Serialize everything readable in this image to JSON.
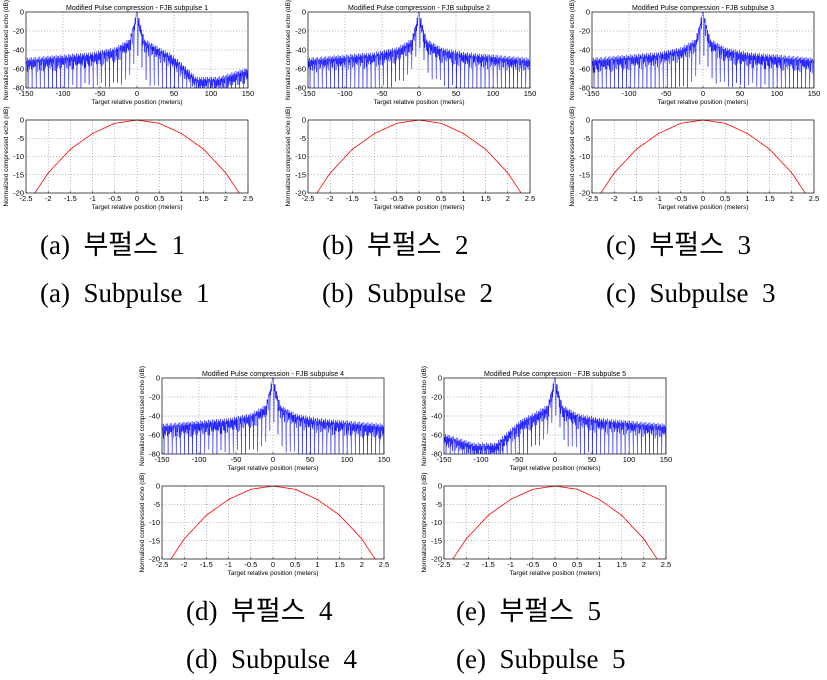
{
  "chart_data": [
    {
      "id": "a",
      "type": "line",
      "title": "Modified Pulse compression - FJB subpulse 1",
      "caption_ko": "(a)  부펄스  1",
      "caption_en": "(a)  Subpulse  1",
      "top": {
        "xlabel": "Target relative position (meters)",
        "ylabel": "Normalized compressed echo (dB)",
        "xlim": [
          -150,
          150
        ],
        "ylim": [
          -80,
          0
        ],
        "xticks": [
          -150,
          -100,
          -50,
          0,
          50,
          100,
          150
        ],
        "yticks": [
          0,
          -20,
          -40,
          -60,
          -80
        ],
        "grid": true,
        "color": "#0000ff",
        "series": [
          {
            "x": [
              -150,
              -120,
              -90,
              -60,
              -30,
              -10,
              0,
              10,
              30,
              45,
              60,
              80,
              110,
              150
            ],
            "y": [
              -50,
              -48,
              -46,
              -44,
              -39,
              -30,
              0,
              -30,
              -39,
              -45,
              -55,
              -70,
              -70,
              -60
            ]
          }
        ]
      },
      "bottom": {
        "xlabel": "Target relative position (meters)",
        "ylabel": "Normalized compressed echo (dB)",
        "xlim": [
          -2.5,
          2.5
        ],
        "ylim": [
          -20,
          0
        ],
        "xticks": [
          -2.5,
          -2,
          -1.5,
          -1,
          -0.5,
          0,
          0.5,
          1,
          1.5,
          2,
          2.5
        ],
        "yticks": [
          0,
          -5,
          -10,
          -15,
          -20
        ],
        "grid": true,
        "color": "#ff0000",
        "series": [
          {
            "x": [
              -2.3,
              -2,
              -1.5,
              -1,
              -0.5,
              0,
              0.5,
              1,
              1.5,
              2,
              2.3
            ],
            "y": [
              -20,
              -14.5,
              -8,
              -3.7,
              -0.9,
              0,
              -0.9,
              -3.7,
              -8,
              -14.5,
              -20
            ]
          }
        ]
      }
    },
    {
      "id": "b",
      "type": "line",
      "title": "Modified Pulse compression - FJB subpulse 2",
      "caption_ko": "(b)  부펄스  2",
      "caption_en": "(b)  Subpulse  2",
      "top": {
        "xlabel": "Target relative position (meters)",
        "ylabel": "Normalized compressed echo (dB)",
        "xlim": [
          -150,
          150
        ],
        "ylim": [
          -80,
          0
        ],
        "xticks": [
          -150,
          -100,
          -50,
          0,
          50,
          100,
          150
        ],
        "yticks": [
          0,
          -20,
          -40,
          -60,
          -80
        ],
        "grid": true,
        "color": "#0000ff",
        "series": [
          {
            "x": [
              -150,
              -120,
              -90,
              -60,
              -30,
              -10,
              0,
              10,
              30,
              60,
              90,
              120,
              150
            ],
            "y": [
              -50,
              -48,
              -46,
              -44,
              -39,
              -30,
              0,
              -30,
              -39,
              -44,
              -46,
              -48,
              -50
            ]
          }
        ]
      },
      "bottom": {
        "xlabel": "Target relative position (meters)",
        "ylabel": "Normalized compressed echo (dB)",
        "xlim": [
          -2.5,
          2.5
        ],
        "ylim": [
          -20,
          0
        ],
        "xticks": [
          -2.5,
          -2,
          -1.5,
          -1,
          -0.5,
          0,
          0.5,
          1,
          1.5,
          2,
          2.5
        ],
        "yticks": [
          0,
          -5,
          -10,
          -15,
          -20
        ],
        "grid": true,
        "color": "#ff0000",
        "series": [
          {
            "x": [
              -2.3,
              -2,
              -1.5,
              -1,
              -0.5,
              0,
              0.5,
              1,
              1.5,
              2,
              2.3
            ],
            "y": [
              -20,
              -14.5,
              -8,
              -3.7,
              -0.9,
              0,
              -0.9,
              -3.7,
              -8,
              -14.5,
              -20
            ]
          }
        ]
      }
    },
    {
      "id": "c",
      "type": "line",
      "title": "Modified Pulse compression - FJB subpulse 3",
      "caption_ko": "(c)  부펄스  3",
      "caption_en": "(c)  Subpulse  3",
      "top": {
        "xlabel": "Target relative position (meters)",
        "ylabel": "Normalized compressed echo (dB)",
        "xlim": [
          -150,
          150
        ],
        "ylim": [
          -80,
          0
        ],
        "xticks": [
          -150,
          -100,
          -50,
          0,
          50,
          100,
          150
        ],
        "yticks": [
          0,
          -20,
          -40,
          -60,
          -80
        ],
        "grid": true,
        "color": "#0000ff",
        "series": [
          {
            "x": [
              -150,
              -120,
              -90,
              -60,
              -30,
              -10,
              0,
              10,
              30,
              60,
              90,
              120,
              150
            ],
            "y": [
              -50,
              -48,
              -46,
              -44,
              -39,
              -30,
              0,
              -30,
              -39,
              -44,
              -46,
              -48,
              -50
            ]
          }
        ]
      },
      "bottom": {
        "xlabel": "Target relative position (meters)",
        "ylabel": "Normalized compressed echo (dB)",
        "xlim": [
          -2.5,
          2.5
        ],
        "ylim": [
          -20,
          0
        ],
        "xticks": [
          -2.5,
          -2,
          -1.5,
          -1,
          -0.5,
          0,
          0.5,
          1,
          1.5,
          2,
          2.5
        ],
        "yticks": [
          0,
          -5,
          -10,
          -15,
          -20
        ],
        "grid": true,
        "color": "#ff0000",
        "series": [
          {
            "x": [
              -2.3,
              -2,
              -1.5,
              -1,
              -0.5,
              0,
              0.5,
              1,
              1.5,
              2,
              2.3
            ],
            "y": [
              -20,
              -14.5,
              -8,
              -3.7,
              -0.9,
              0,
              -0.9,
              -3.7,
              -8,
              -14.5,
              -20
            ]
          }
        ]
      }
    },
    {
      "id": "d",
      "type": "line",
      "title": "Modified Pulse compression - FJB subpulse 4",
      "caption_ko": "(d)  부펄스  4",
      "caption_en": "(d)  Subpulse  4",
      "top": {
        "xlabel": "Target relative position (meters)",
        "ylabel": "Normalized compressed echo (dB)",
        "xlim": [
          -150,
          150
        ],
        "ylim": [
          -80,
          0
        ],
        "xticks": [
          -150,
          -100,
          -50,
          0,
          50,
          100,
          150
        ],
        "yticks": [
          0,
          -20,
          -40,
          -60,
          -80
        ],
        "grid": true,
        "color": "#0000ff",
        "series": [
          {
            "x": [
              -150,
              -120,
              -90,
              -60,
              -30,
              -10,
              0,
              10,
              30,
              60,
              90,
              120,
              150
            ],
            "y": [
              -50,
              -48,
              -46,
              -44,
              -39,
              -30,
              0,
              -30,
              -39,
              -44,
              -46,
              -48,
              -50
            ]
          }
        ]
      },
      "bottom": {
        "xlabel": "Target relative position (meters)",
        "ylabel": "Normalized compressed echo (dB)",
        "xlim": [
          -2.5,
          2.5
        ],
        "ylim": [
          -20,
          0
        ],
        "xticks": [
          -2.5,
          -2,
          -1.5,
          -1,
          -0.5,
          0,
          0.5,
          1,
          1.5,
          2,
          2.5
        ],
        "yticks": [
          0,
          -5,
          -10,
          -15,
          -20
        ],
        "grid": true,
        "color": "#ff0000",
        "series": [
          {
            "x": [
              -2.3,
              -2,
              -1.5,
              -1,
              -0.5,
              0,
              0.5,
              1,
              1.5,
              2,
              2.3
            ],
            "y": [
              -20,
              -14.5,
              -8,
              -3.7,
              -0.9,
              0,
              -0.9,
              -3.7,
              -8,
              -14.5,
              -20
            ]
          }
        ]
      }
    },
    {
      "id": "e",
      "type": "line",
      "title": "Modified Pulse compression - FJB subpulse 5",
      "caption_ko": "(e)  부펄스  5",
      "caption_en": "(e)  Subpulse  5",
      "top": {
        "xlabel": "Target relative position (meters)",
        "ylabel": "Normalized compressed echo (dB)",
        "xlim": [
          -150,
          150
        ],
        "ylim": [
          -80,
          0
        ],
        "xticks": [
          -150,
          -100,
          -50,
          0,
          50,
          100,
          150
        ],
        "yticks": [
          0,
          -20,
          -40,
          -60,
          -80
        ],
        "grid": true,
        "color": "#0000ff",
        "series": [
          {
            "x": [
              -150,
              -110,
              -80,
              -60,
              -45,
              -30,
              -10,
              0,
              10,
              30,
              60,
              90,
              120,
              150
            ],
            "y": [
              -60,
              -70,
              -70,
              -55,
              -45,
              -39,
              -30,
              0,
              -30,
              -39,
              -44,
              -46,
              -48,
              -50
            ]
          }
        ]
      },
      "bottom": {
        "xlabel": "Target relative position (meters)",
        "ylabel": "Normalized compressed echo (dB)",
        "xlim": [
          -2.5,
          2.5
        ],
        "ylim": [
          -20,
          0
        ],
        "xticks": [
          -2.5,
          -2,
          -1.5,
          -1,
          -0.5,
          0,
          0.5,
          1,
          1.5,
          2,
          2.5
        ],
        "yticks": [
          0,
          -5,
          -10,
          -15,
          -20
        ],
        "grid": true,
        "color": "#ff0000",
        "series": [
          {
            "x": [
              -2.3,
              -2,
              -1.5,
              -1,
              -0.5,
              0,
              0.5,
              1,
              1.5,
              2,
              2.3
            ],
            "y": [
              -20,
              -14.5,
              -8,
              -3.7,
              -0.9,
              0,
              -0.9,
              -3.7,
              -8,
              -14.5,
              -20
            ]
          }
        ]
      }
    }
  ]
}
